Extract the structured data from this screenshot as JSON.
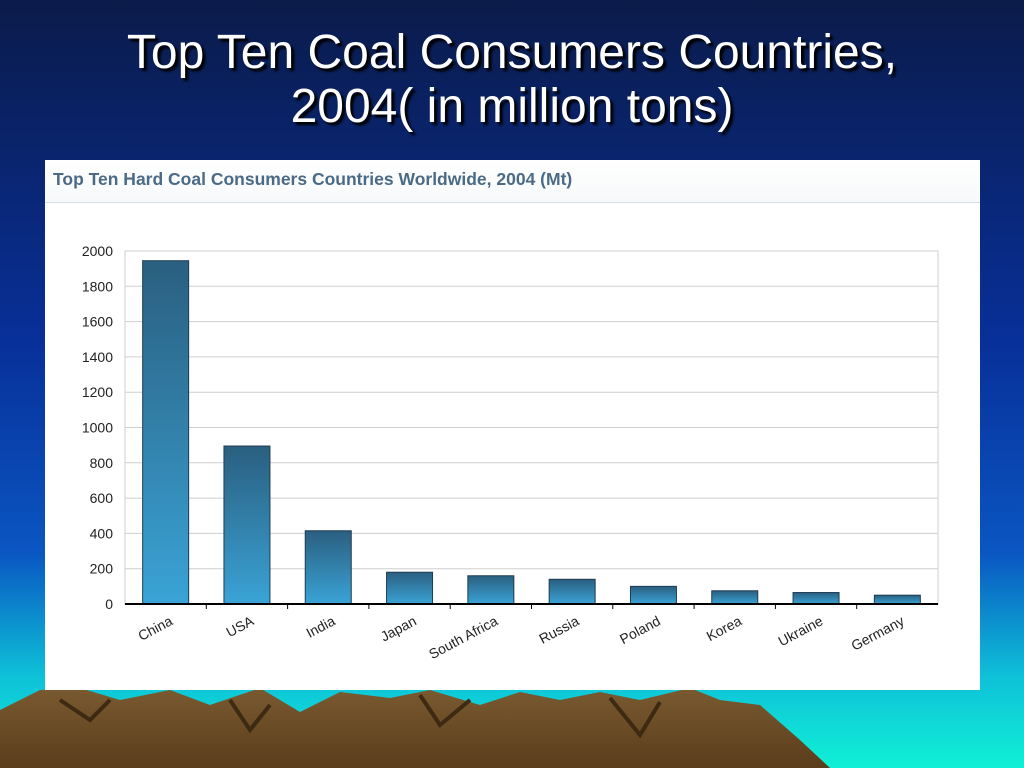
{
  "slide": {
    "title_line1": "Top Ten Coal Consumers Countries,",
    "title_line2": "2004( in million tons)"
  },
  "colors": {
    "bar_top": "#2a5f80",
    "bar_bottom": "#3aa3d6",
    "bar_stroke": "#1f3c52",
    "grid": "#cfcfcf",
    "title_text": "#ffffff",
    "header_text": "#4a6a86"
  },
  "chart_data": {
    "type": "bar",
    "title": "Top Ten Hard Coal Consumers Countries Worldwide, 2004 (Mt)",
    "xlabel": "",
    "ylabel": "",
    "categories": [
      "China",
      "USA",
      "India",
      "Japan",
      "South Africa",
      "Russia",
      "Poland",
      "Korea",
      "Ukraine",
      "Germany"
    ],
    "values": [
      1945,
      895,
      415,
      180,
      160,
      140,
      100,
      75,
      65,
      50
    ],
    "ylim": [
      0,
      2000
    ],
    "yticks": [
      0,
      200,
      400,
      600,
      800,
      1000,
      1200,
      1400,
      1600,
      1800,
      2000
    ],
    "grid": true,
    "legend": "none"
  }
}
